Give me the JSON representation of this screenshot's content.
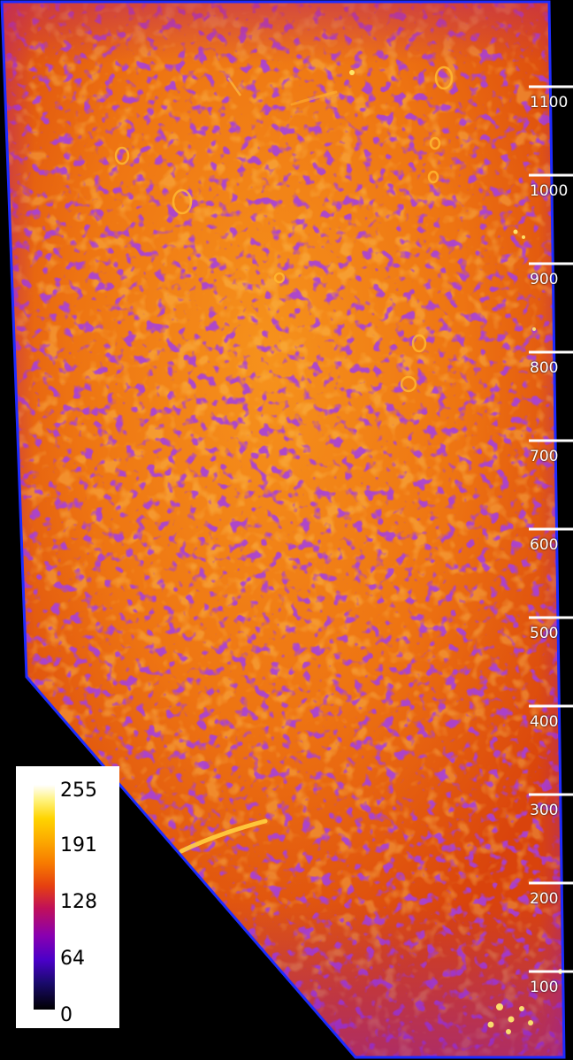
{
  "scale_bar": {
    "labels": [
      "1100",
      "1000",
      "900",
      "800",
      "700",
      "600",
      "500",
      "400",
      "300",
      "200",
      "100"
    ]
  },
  "colorbar": {
    "labels": [
      "255",
      "191",
      "128",
      "64",
      "0"
    ]
  },
  "colors": {
    "background": "#000000",
    "outline": "#1e2cff",
    "fill_base": "#e8640a",
    "fill_bright": "#f4901a",
    "speckle_dark": "#6a10b0",
    "highlight": "#ffe060",
    "scale_ticks": "#ffffff"
  }
}
